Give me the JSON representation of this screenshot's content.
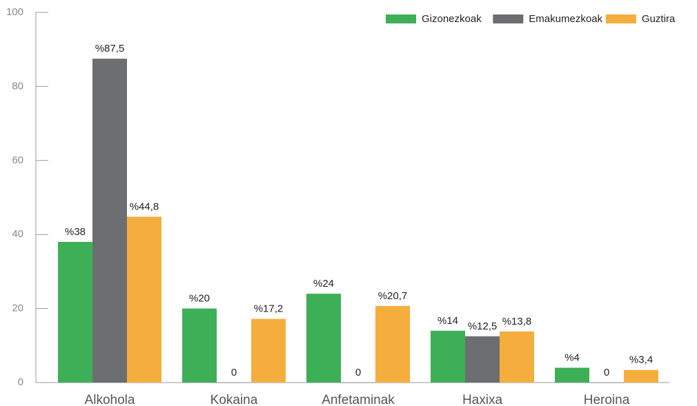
{
  "chart_data": {
    "type": "bar",
    "categories": [
      "Alkohola",
      "Kokaina",
      "Anfetaminak",
      "Haxixa",
      "Heroina"
    ],
    "series": [
      {
        "name": "Gizonezkoak",
        "color": "#3daf57",
        "values": [
          38,
          20,
          24,
          14,
          4
        ],
        "value_labels": [
          "%38",
          "%20",
          "%24",
          "%14",
          "%4"
        ]
      },
      {
        "name": "Emakumezkoak",
        "color": "#6d6e71",
        "values": [
          87.5,
          0,
          0,
          12.5,
          0
        ],
        "value_labels": [
          "%87,5",
          "0",
          "0",
          "%12,5",
          "0"
        ]
      },
      {
        "name": "Guztira",
        "color": "#f5ae3d",
        "values": [
          44.8,
          17.2,
          20.7,
          13.8,
          3.4
        ],
        "value_labels": [
          "%44,8",
          "%17,2",
          "%20,7",
          "%13,8",
          "%3,4"
        ]
      }
    ],
    "ylim": [
      0,
      100
    ],
    "yticks": [
      0,
      20,
      40,
      60,
      80,
      100
    ],
    "grid": false,
    "legend": "top-right"
  }
}
